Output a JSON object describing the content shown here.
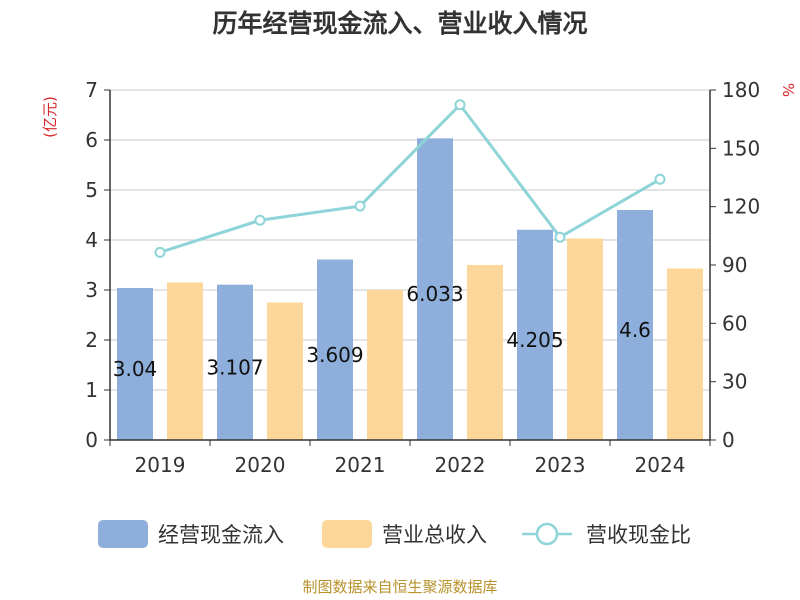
{
  "chart_data": {
    "type": "bar",
    "title": "历年经营现金流入、营业收入情况",
    "categories": [
      "2019",
      "2020",
      "2021",
      "2022",
      "2023",
      "2024"
    ],
    "series": [
      {
        "name": "经营现金流入",
        "kind": "bar",
        "axis": "left",
        "color": "#8eaedb",
        "values": [
          3.04,
          3.107,
          3.609,
          6.033,
          4.205,
          4.6
        ],
        "labels": [
          "3.04",
          "3.107",
          "3.609",
          "6.033",
          "4.205",
          "4.6"
        ]
      },
      {
        "name": "营业总收入",
        "kind": "bar",
        "axis": "left",
        "color": "#fdd699",
        "values": [
          3.15,
          2.75,
          3.0,
          3.5,
          4.03,
          3.43
        ]
      },
      {
        "name": "营收现金比",
        "kind": "line",
        "axis": "right",
        "color": "#8ed4d8",
        "values": [
          96.5,
          113.0,
          120.3,
          172.4,
          104.3,
          134.1
        ]
      }
    ],
    "y_left": {
      "label": "(亿元)",
      "min": 0,
      "max": 7,
      "ticks": [
        "0",
        "1",
        "2",
        "3",
        "4",
        "5",
        "6",
        "7"
      ]
    },
    "y_right": {
      "label": "%",
      "min": 0,
      "max": 180,
      "ticks": [
        "0",
        "30",
        "60",
        "90",
        "120",
        "150",
        "180"
      ]
    },
    "grid": true,
    "legend": "bottom",
    "source": "制图数据来自恒生聚源数据库"
  }
}
